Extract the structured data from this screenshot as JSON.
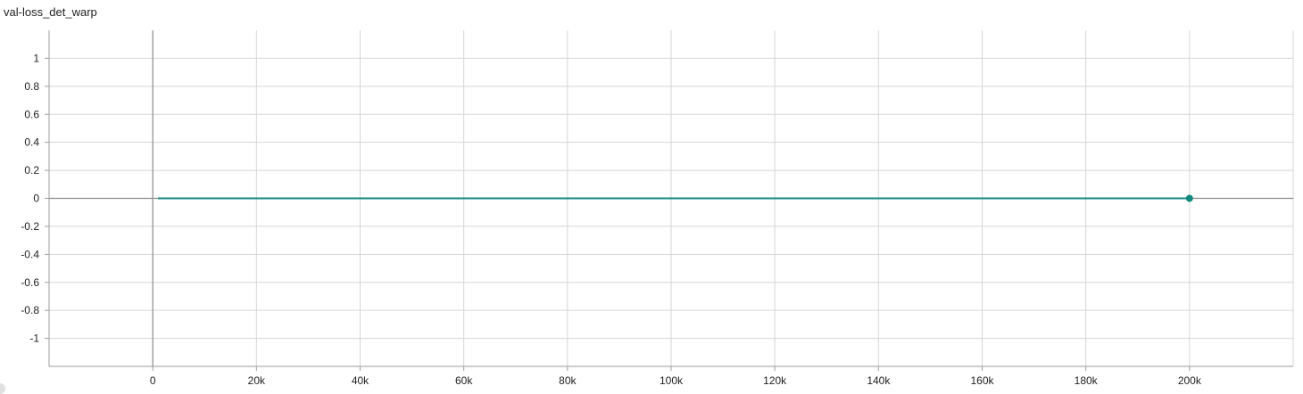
{
  "chart_data": {
    "type": "line",
    "title": "val-loss_det_warp",
    "xlabel": "",
    "ylabel": "",
    "xlim": [
      -20000,
      220000
    ],
    "ylim": [
      -1.2,
      1.2
    ],
    "x_ticks": [
      0,
      20000,
      40000,
      60000,
      80000,
      100000,
      120000,
      140000,
      160000,
      180000,
      200000
    ],
    "x_tick_labels": [
      "0",
      "20k",
      "40k",
      "60k",
      "80k",
      "100k",
      "120k",
      "140k",
      "160k",
      "180k",
      "200k"
    ],
    "y_ticks": [
      1,
      0.8,
      0.6,
      0.4,
      0.2,
      0,
      -0.2,
      -0.4,
      -0.6,
      -0.8,
      -1
    ],
    "y_tick_labels": [
      "1",
      "0.8",
      "0.6",
      "0.4",
      "0.2",
      "0",
      "-0.2",
      "-0.4",
      "-0.6",
      "-0.8",
      "-1"
    ],
    "grid": true,
    "legend": "none",
    "series": [
      {
        "color": "#12897f",
        "x": [
          1000,
          200000
        ],
        "y": [
          0,
          0
        ],
        "last_point_marker": true
      }
    ]
  }
}
